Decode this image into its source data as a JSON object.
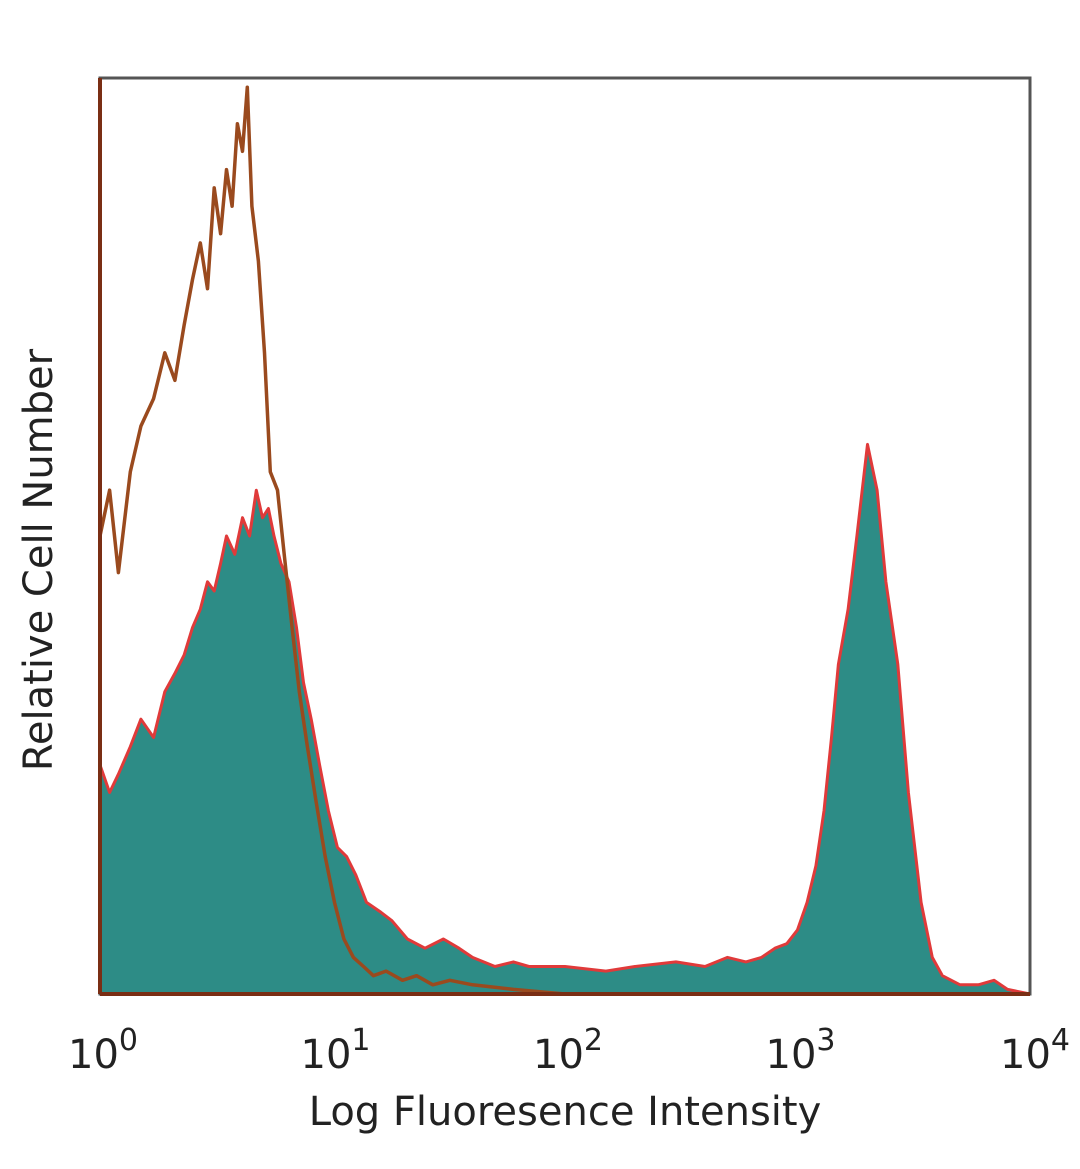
{
  "chart_data": {
    "type": "area",
    "title": "",
    "xlabel": "Log Fluoresence Intensity",
    "ylabel": "Relative Cell Number",
    "x_scale": "log",
    "xlim": [
      1,
      10000
    ],
    "ylim": [
      0,
      1
    ],
    "grid": false,
    "x_ticks": [
      {
        "value": 1,
        "base": "10",
        "exp": "0"
      },
      {
        "value": 10,
        "base": "10",
        "exp": "1"
      },
      {
        "value": 100,
        "base": "10",
        "exp": "2"
      },
      {
        "value": 1000,
        "base": "10",
        "exp": "3"
      },
      {
        "value": 10000,
        "base": "10",
        "exp": "4"
      }
    ],
    "series": [
      {
        "style": "outline",
        "color": "#9a4a1e",
        "x": [
          1,
          1.1,
          1.2,
          1.35,
          1.5,
          1.7,
          1.9,
          2.1,
          2.3,
          2.5,
          2.7,
          2.9,
          3.1,
          3.3,
          3.5,
          3.7,
          3.9,
          4.1,
          4.3,
          4.5,
          4.8,
          5.1,
          5.4,
          5.8,
          6.2,
          6.7,
          7.2,
          7.8,
          8.5,
          9.3,
          10.2,
          11.2,
          12.3,
          13.6,
          15,
          17,
          20,
          23,
          27,
          32,
          40,
          60,
          100
        ],
        "values": [
          0.5,
          0.55,
          0.46,
          0.57,
          0.62,
          0.65,
          0.7,
          0.67,
          0.73,
          0.78,
          0.82,
          0.77,
          0.88,
          0.83,
          0.9,
          0.86,
          0.95,
          0.92,
          0.99,
          0.86,
          0.8,
          0.7,
          0.57,
          0.55,
          0.48,
          0.4,
          0.33,
          0.27,
          0.21,
          0.15,
          0.1,
          0.06,
          0.04,
          0.03,
          0.02,
          0.025,
          0.015,
          0.02,
          0.01,
          0.015,
          0.01,
          0.005,
          0
        ]
      },
      {
        "style": "filled",
        "color": "#2d8c86",
        "outline_color": "#e03a3a",
        "x": [
          1,
          1.1,
          1.2,
          1.35,
          1.5,
          1.7,
          1.9,
          2.1,
          2.3,
          2.5,
          2.7,
          2.9,
          3.1,
          3.3,
          3.5,
          3.8,
          4.1,
          4.4,
          4.7,
          5.0,
          5.3,
          5.6,
          6.0,
          6.5,
          7.0,
          7.5,
          8.1,
          8.8,
          9.6,
          10.5,
          11.5,
          12.6,
          14,
          16,
          18,
          21,
          25,
          30,
          35,
          40,
          50,
          60,
          70,
          100,
          150,
          200,
          300,
          400,
          500,
          600,
          700,
          800,
          900,
          1000,
          1100,
          1200,
          1300,
          1400,
          1500,
          1650,
          1800,
          2000,
          2200,
          2400,
          2700,
          3000,
          3400,
          3800,
          4200,
          5000,
          6000,
          7000,
          8000,
          10000
        ],
        "values": [
          0.25,
          0.22,
          0.24,
          0.27,
          0.3,
          0.28,
          0.33,
          0.35,
          0.37,
          0.4,
          0.42,
          0.45,
          0.44,
          0.47,
          0.5,
          0.48,
          0.52,
          0.5,
          0.55,
          0.52,
          0.53,
          0.5,
          0.47,
          0.45,
          0.4,
          0.34,
          0.3,
          0.25,
          0.2,
          0.16,
          0.15,
          0.13,
          0.1,
          0.09,
          0.08,
          0.06,
          0.05,
          0.06,
          0.05,
          0.04,
          0.03,
          0.035,
          0.03,
          0.03,
          0.025,
          0.03,
          0.035,
          0.03,
          0.04,
          0.035,
          0.04,
          0.05,
          0.055,
          0.07,
          0.1,
          0.14,
          0.2,
          0.28,
          0.36,
          0.42,
          0.5,
          0.6,
          0.55,
          0.45,
          0.36,
          0.22,
          0.1,
          0.04,
          0.02,
          0.01,
          0.01,
          0.015,
          0.005,
          0
        ]
      }
    ]
  }
}
